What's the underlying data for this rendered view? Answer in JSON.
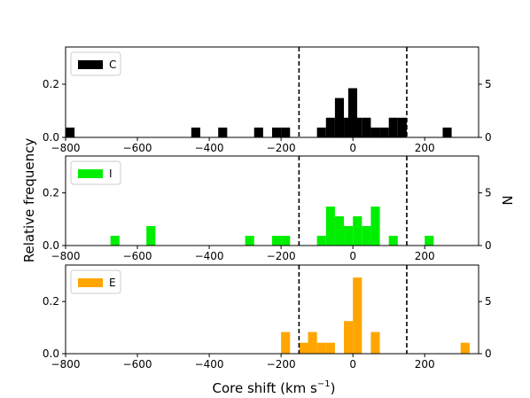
{
  "chart_data": {
    "type": "bar",
    "title": "",
    "xlabel_main": "Core shift (km s",
    "xlabel_exp": "−1",
    "xlabel_close": ")",
    "ylabel_left": "Relative frequency",
    "ylabel_right": "N",
    "xlim": [
      -800,
      350
    ],
    "ylim_frequency": [
      0,
      0.34
    ],
    "ylim_counts": [
      0,
      8.5
    ],
    "bin_width_kms": 25,
    "vertical_dashed_lines": [
      -150,
      150
    ],
    "x_ticks": [
      -800,
      -600,
      -400,
      -200,
      0,
      200
    ],
    "x_tick_labels": [
      "−800",
      "−600",
      "−400",
      "−200",
      "0",
      "200"
    ],
    "y_ticks_left": [
      0.0,
      0.2
    ],
    "y_tick_labels_left": [
      "0.0",
      "0.2"
    ],
    "y_ticks_right": [
      0,
      5
    ],
    "y_tick_labels_right": [
      "0",
      "5"
    ],
    "panels": [
      {
        "series_name": "C",
        "color": "#000000",
        "bins": [
          {
            "x0": -800,
            "freq": 0.037
          },
          {
            "x0": -450,
            "freq": 0.037
          },
          {
            "x0": -375,
            "freq": 0.037
          },
          {
            "x0": -275,
            "freq": 0.037
          },
          {
            "x0": -225,
            "freq": 0.037
          },
          {
            "x0": -200,
            "freq": 0.037
          },
          {
            "x0": -100,
            "freq": 0.037
          },
          {
            "x0": -75,
            "freq": 0.074
          },
          {
            "x0": -50,
            "freq": 0.148
          },
          {
            "x0": -25,
            "freq": 0.074
          },
          {
            "x0": -13,
            "freq": 0.185
          },
          {
            "x0": 0,
            "freq": 0.074
          },
          {
            "x0": 25,
            "freq": 0.074
          },
          {
            "x0": 50,
            "freq": 0.037
          },
          {
            "x0": 75,
            "freq": 0.037
          },
          {
            "x0": 100,
            "freq": 0.074
          },
          {
            "x0": 125,
            "freq": 0.074
          },
          {
            "x0": 250,
            "freq": 0.037
          }
        ]
      },
      {
        "series_name": "I",
        "color": "#00ee00",
        "bins": [
          {
            "x0": -675,
            "freq": 0.037
          },
          {
            "x0": -575,
            "freq": 0.074
          },
          {
            "x0": -300,
            "freq": 0.037
          },
          {
            "x0": -225,
            "freq": 0.037
          },
          {
            "x0": -200,
            "freq": 0.037
          },
          {
            "x0": -100,
            "freq": 0.037
          },
          {
            "x0": -75,
            "freq": 0.148
          },
          {
            "x0": -50,
            "freq": 0.111
          },
          {
            "x0": -25,
            "freq": 0.074
          },
          {
            "x0": 0,
            "freq": 0.111
          },
          {
            "x0": 25,
            "freq": 0.074
          },
          {
            "x0": 50,
            "freq": 0.148
          },
          {
            "x0": 100,
            "freq": 0.037
          },
          {
            "x0": 200,
            "freq": 0.037
          }
        ]
      },
      {
        "series_name": "E",
        "color": "#ffa500",
        "bins": [
          {
            "x0": -200,
            "freq": 0.083
          },
          {
            "x0": -150,
            "freq": 0.042
          },
          {
            "x0": -125,
            "freq": 0.083
          },
          {
            "x0": -100,
            "freq": 0.042
          },
          {
            "x0": -75,
            "freq": 0.042
          },
          {
            "x0": -25,
            "freq": 0.125
          },
          {
            "x0": 0,
            "freq": 0.292
          },
          {
            "x0": 50,
            "freq": 0.083
          },
          {
            "x0": 300,
            "freq": 0.042
          }
        ]
      }
    ],
    "grid": false,
    "legend_placement": "top-left"
  }
}
